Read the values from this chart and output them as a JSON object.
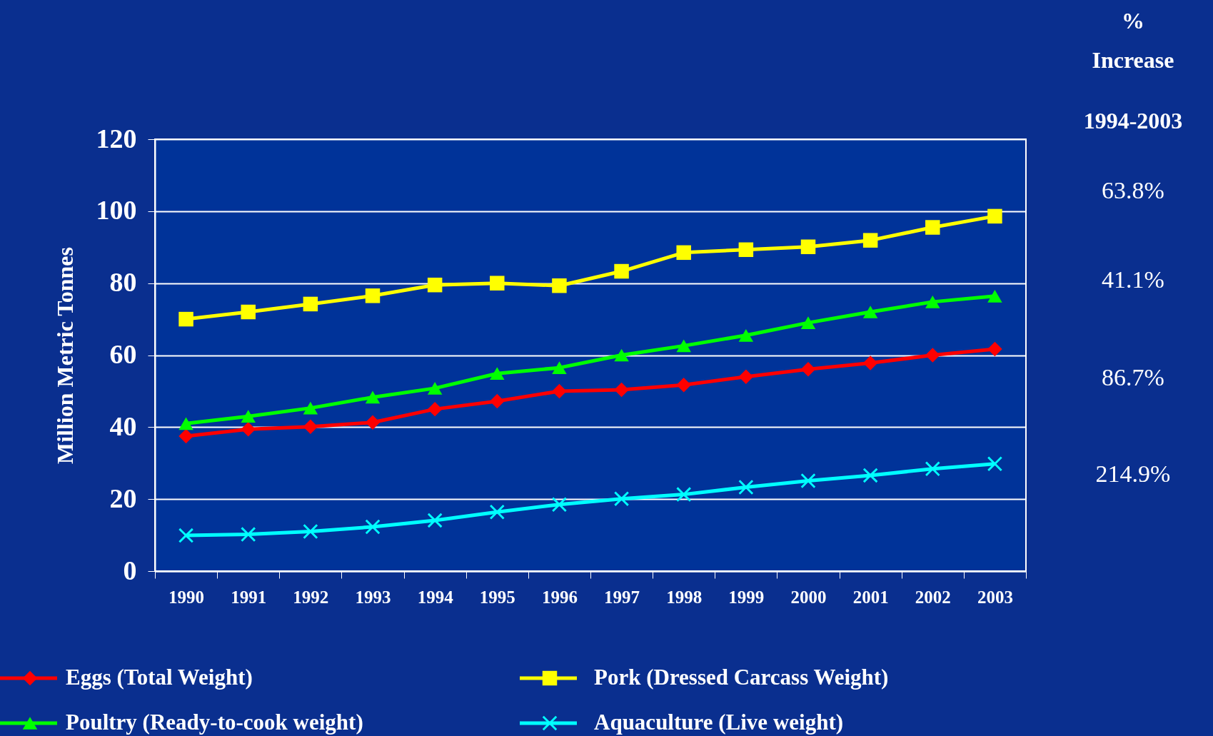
{
  "chart_data": {
    "type": "line",
    "ylabel": "Million Metric Tonnes",
    "categories": [
      "1990",
      "1991",
      "1992",
      "1993",
      "1994",
      "1995",
      "1996",
      "1997",
      "1998",
      "1999",
      "2000",
      "2001",
      "2002",
      "2003"
    ],
    "ylim": [
      0,
      120
    ],
    "yticks": [
      0,
      20,
      40,
      60,
      80,
      100,
      120
    ],
    "grid": "y",
    "legend": "bottom",
    "line_style": "solid",
    "series": [
      {
        "name": "Eggs (Total Weight)",
        "color": "#ff0000",
        "marker": "diamond",
        "values": [
          37.5,
          39.4,
          40.1,
          41.3,
          45.0,
          47.2,
          50.0,
          50.4,
          51.7,
          54.0,
          56.1,
          57.8,
          60.0,
          61.7
        ]
      },
      {
        "name": "Pork (Dressed Carcass Weight)",
        "color": "#ffff00",
        "marker": "square",
        "values": [
          70.0,
          72.0,
          74.2,
          76.5,
          79.5,
          80.0,
          79.3,
          83.3,
          88.5,
          89.3,
          90.1,
          91.9,
          95.5,
          98.6
        ]
      },
      {
        "name": "Poultry (Ready-to-cook weight)",
        "color": "#00ff00",
        "marker": "triangle",
        "values": [
          41.0,
          43.0,
          45.3,
          48.3,
          50.8,
          54.9,
          56.5,
          60.0,
          62.6,
          65.5,
          69.0,
          72.0,
          74.8,
          76.4
        ]
      },
      {
        "name": "Aquaculture (Live weight)",
        "color": "#00ffff",
        "marker": "cross",
        "values": [
          9.9,
          10.2,
          11.0,
          12.3,
          14.1,
          16.4,
          18.5,
          20.1,
          21.3,
          23.3,
          25.1,
          26.6,
          28.4,
          29.8
        ]
      }
    ],
    "annotations": [
      "%",
      "Increase",
      "1994-2003",
      "63.8%",
      "41.1%",
      "86.7%",
      "214.9%"
    ]
  }
}
